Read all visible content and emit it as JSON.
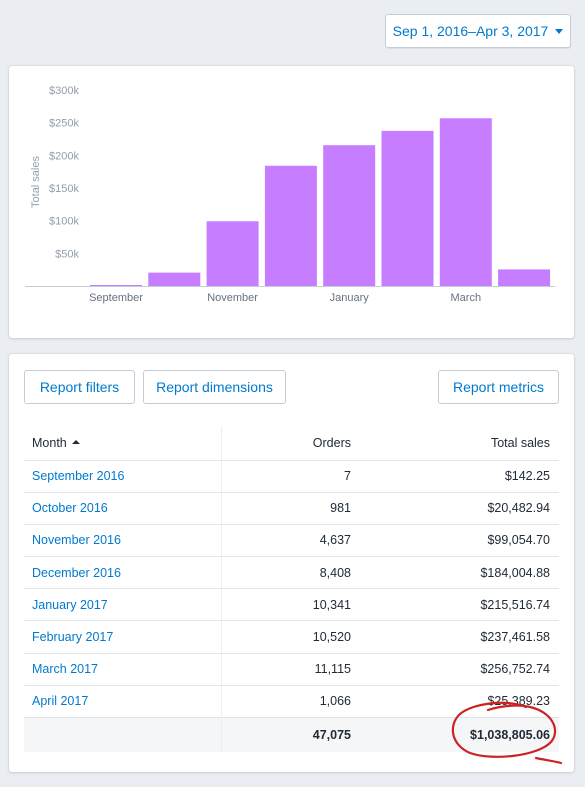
{
  "date_range": {
    "label": "Sep 1, 2016–Apr 3, 2017",
    "caret_icon": "caret-down-icon"
  },
  "chart_data": {
    "type": "bar",
    "categories": [
      "September 2016",
      "October 2016",
      "November 2016",
      "December 2016",
      "January 2017",
      "February 2017",
      "March 2017",
      "April 2017"
    ],
    "values": [
      142.25,
      20482.94,
      99054.7,
      184004.88,
      215516.74,
      237461.58,
      256752.74,
      25389.23
    ],
    "x_tick_labels": [
      {
        "index": 0,
        "label": "September"
      },
      {
        "index": 2,
        "label": "November"
      },
      {
        "index": 4,
        "label": "January"
      },
      {
        "index": 6,
        "label": "March"
      }
    ],
    "y_ticks": [
      50000,
      100000,
      150000,
      200000,
      250000,
      300000
    ],
    "y_tick_labels": [
      "$50k",
      "$100k",
      "$150k",
      "$200k",
      "$250k",
      "$300k"
    ],
    "ylabel": "Total sales",
    "xlabel": "",
    "title": "",
    "ylim": [
      0,
      300000
    ],
    "grid": false,
    "bar_color": "#c77dff"
  },
  "buttons": {
    "report_filters": "Report filters",
    "report_dimensions": "Report dimensions",
    "report_metrics": "Report metrics"
  },
  "table": {
    "headers": {
      "month": "Month",
      "orders": "Orders",
      "total_sales": "Total sales"
    },
    "sort": {
      "column": "month",
      "direction": "ascending",
      "icon": "sort-ascending-icon"
    },
    "rows": [
      {
        "month": "September 2016",
        "orders": "7",
        "total_sales": "$142.25"
      },
      {
        "month": "October 2016",
        "orders": "981",
        "total_sales": "$20,482.94"
      },
      {
        "month": "November 2016",
        "orders": "4,637",
        "total_sales": "$99,054.70"
      },
      {
        "month": "December 2016",
        "orders": "8,408",
        "total_sales": "$184,004.88"
      },
      {
        "month": "January 2017",
        "orders": "10,341",
        "total_sales": "$215,516.74"
      },
      {
        "month": "February 2017",
        "orders": "10,520",
        "total_sales": "$237,461.58"
      },
      {
        "month": "March 2017",
        "orders": "11,115",
        "total_sales": "$256,752.74"
      },
      {
        "month": "April 2017",
        "orders": "1,066",
        "total_sales": "$25,389.23"
      }
    ],
    "totals": {
      "orders": "47,075",
      "total_sales": "$1,038,805.06"
    }
  },
  "annotation": {
    "color": "#cc2222",
    "shape": "hand-drawn-circle"
  }
}
